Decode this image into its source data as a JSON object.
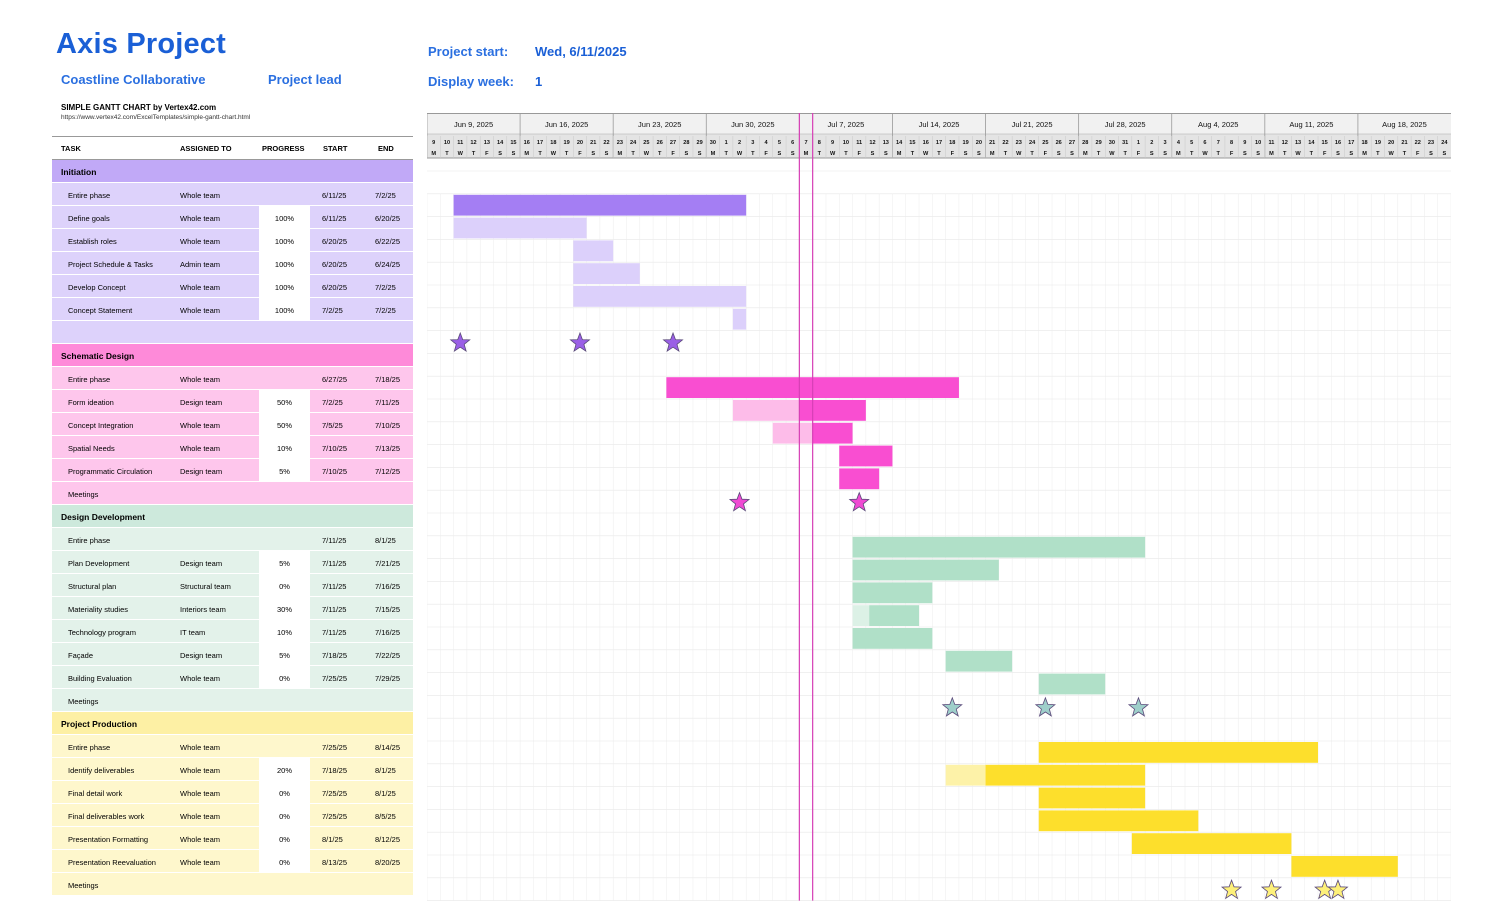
{
  "header": {
    "title": "Axis Project",
    "company": "Coastline Collaborative",
    "lead_label": "Project lead",
    "project_start_label": "Project start:",
    "project_start_value": "Wed, 6/11/2025",
    "display_week_label": "Display week:",
    "display_week_value": "1",
    "credit": "SIMPLE GANTT CHART by Vertex42.com",
    "credit_url": "https://www.vertex42.com/ExcelTemplates/simple-gantt-chart.html"
  },
  "columns": {
    "task": "TASK",
    "assigned": "ASSIGNED TO",
    "progress": "PROGRESS",
    "start": "START",
    "end": "END"
  },
  "colors": {
    "initiation": {
      "header": "#c1a9f7",
      "row": "#ddd2fb",
      "bar_dark": "#a47ef3",
      "bar_light": "#dcd0fb",
      "star": "#9a5fe6"
    },
    "schematic": {
      "header": "#fe8ad9",
      "row": "#fec6ec",
      "bar_dark": "#f94ed1",
      "bar_light": "#fdbce9",
      "star": "#f04ad3"
    },
    "design": {
      "header": "#cde9dc",
      "row": "#e3f2ea",
      "bar_dark": "#b0e0c8",
      "bar_light": "#dcf1e6",
      "star": "#9ecfca"
    },
    "production": {
      "header": "#fdf0a4",
      "row": "#fef7cc",
      "bar_dark": "#fddf2c",
      "bar_light": "#fdf2a8",
      "star": "#fdf07a"
    },
    "today_line": "#d63fb5"
  },
  "timeline": {
    "weeks": [
      "Jun 9, 2025",
      "Jun 16, 2025",
      "Jun 23, 2025",
      "Jun 30, 2025",
      "Jul 7, 2025",
      "Jul 14, 2025",
      "Jul 21, 2025",
      "Jul 28, 2025",
      "Aug 4, 2025",
      "Aug 11, 2025",
      "Aug 18, 2025"
    ],
    "day_numbers": [
      "9",
      "10",
      "11",
      "12",
      "13",
      "14",
      "15",
      "16",
      "17",
      "18",
      "19",
      "20",
      "21",
      "22",
      "23",
      "24",
      "25",
      "26",
      "27",
      "28",
      "29",
      "30",
      "1",
      "2",
      "3",
      "4",
      "5",
      "6",
      "7",
      "8",
      "9",
      "10",
      "11",
      "12",
      "13",
      "14",
      "15",
      "16",
      "17",
      "18",
      "19",
      "20",
      "21",
      "22",
      "23",
      "24",
      "25",
      "26",
      "27",
      "28",
      "29",
      "30",
      "31",
      "1",
      "2",
      "3",
      "4",
      "5",
      "6",
      "7",
      "8",
      "9",
      "10",
      "11",
      "12",
      "13",
      "14",
      "15",
      "16",
      "17",
      "18",
      "19",
      "20",
      "21",
      "22",
      "23",
      "24"
    ],
    "day_letters": [
      "M",
      "T",
      "W",
      "T",
      "F",
      "S",
      "S"
    ],
    "first_day": "2025-06-09",
    "today_markers": [
      "2025-07-07",
      "2025-07-08"
    ]
  },
  "phases": [
    {
      "key": "initiation",
      "name": "Initiation",
      "tasks": [
        {
          "name": "Entire phase",
          "assigned": "Whole team",
          "progress": "",
          "start": "6/11/25",
          "end": "7/2/25",
          "bar": {
            "start": "2025-06-11",
            "end": "2025-07-02",
            "done": 0,
            "dark": true
          }
        },
        {
          "name": "Define goals",
          "assigned": "Whole team",
          "progress": "100%",
          "start": "6/11/25",
          "end": "6/20/25",
          "bar": {
            "start": "2025-06-11",
            "end": "2025-06-20",
            "done": 1
          }
        },
        {
          "name": "Establish roles",
          "assigned": "Whole team",
          "progress": "100%",
          "start": "6/20/25",
          "end": "6/22/25",
          "bar": {
            "start": "2025-06-20",
            "end": "2025-06-22",
            "done": 1
          }
        },
        {
          "name": "Project Schedule & Tasks",
          "assigned": "Admin team",
          "progress": "100%",
          "start": "6/20/25",
          "end": "6/24/25",
          "bar": {
            "start": "2025-06-20",
            "end": "2025-06-24",
            "done": 1
          }
        },
        {
          "name": "Develop Concept",
          "assigned": "Whole team",
          "progress": "100%",
          "start": "6/20/25",
          "end": "7/2/25",
          "bar": {
            "start": "2025-06-20",
            "end": "2025-07-02",
            "done": 1
          }
        },
        {
          "name": "Concept Statement",
          "assigned": "Whole team",
          "progress": "100%",
          "start": "7/2/25",
          "end": "7/2/25",
          "bar": {
            "start": "2025-07-02",
            "end": "2025-07-02",
            "done": 1
          }
        },
        {
          "name": "",
          "assigned": "",
          "progress": "",
          "start": "",
          "end": "",
          "stars": [
            "2025-06-11",
            "2025-06-20",
            "2025-06-27"
          ]
        }
      ]
    },
    {
      "key": "schematic",
      "name": "Schematic Design",
      "tasks": [
        {
          "name": "Entire phase",
          "assigned": "Whole team",
          "progress": "",
          "start": "6/27/25",
          "end": "7/18/25",
          "bar": {
            "start": "2025-06-27",
            "end": "2025-07-18",
            "done": 0,
            "dark": true
          }
        },
        {
          "name": "Form ideation",
          "assigned": "Design team",
          "progress": "50%",
          "start": "7/2/25",
          "end": "7/11/25",
          "bar": {
            "start": "2025-07-02",
            "end": "2025-07-11",
            "done": 0.5
          }
        },
        {
          "name": "Concept Integration",
          "assigned": "Whole team",
          "progress": "50%",
          "start": "7/5/25",
          "end": "7/10/25",
          "bar": {
            "start": "2025-07-05",
            "end": "2025-07-10",
            "done": 0.5
          }
        },
        {
          "name": "Spatial Needs",
          "assigned": "Whole team",
          "progress": "10%",
          "start": "7/10/25",
          "end": "7/13/25",
          "bar": {
            "start": "2025-07-10",
            "end": "2025-07-13",
            "done": 0
          }
        },
        {
          "name": "Programmatic Circulation",
          "assigned": "Design team",
          "progress": "5%",
          "start": "7/10/25",
          "end": "7/12/25",
          "bar": {
            "start": "2025-07-10",
            "end": "2025-07-12",
            "done": 0
          }
        },
        {
          "name": "Meetings",
          "assigned": "",
          "progress": "",
          "start": "",
          "end": "",
          "stars": [
            "2025-07-02",
            "2025-07-11"
          ]
        }
      ]
    },
    {
      "key": "design",
      "name": "Design Development",
      "tasks": [
        {
          "name": "Entire phase",
          "assigned": "",
          "progress": "",
          "start": "7/11/25",
          "end": "8/1/25",
          "bar": {
            "start": "2025-07-11",
            "end": "2025-08-01",
            "done": 0,
            "dark": true
          }
        },
        {
          "name": "Plan Development",
          "assigned": "Design team",
          "progress": "5%",
          "start": "7/11/25",
          "end": "7/21/25",
          "bar": {
            "start": "2025-07-11",
            "end": "2025-07-21",
            "done": 0
          }
        },
        {
          "name": "Structural plan",
          "assigned": "Structural team",
          "progress": "0%",
          "start": "7/11/25",
          "end": "7/16/25",
          "bar": {
            "start": "2025-07-11",
            "end": "2025-07-16",
            "done": 0
          }
        },
        {
          "name": "Materiality studies",
          "assigned": "Interiors team",
          "progress": "30%",
          "start": "7/11/25",
          "end": "7/15/25",
          "bar": {
            "start": "2025-07-11",
            "end": "2025-07-15",
            "done": 0.25
          }
        },
        {
          "name": "Technology program",
          "assigned": "IT team",
          "progress": "10%",
          "start": "7/11/25",
          "end": "7/16/25",
          "bar": {
            "start": "2025-07-11",
            "end": "2025-07-16",
            "done": 0
          }
        },
        {
          "name": "Façade",
          "assigned": "Design team",
          "progress": "5%",
          "start": "7/18/25",
          "end": "7/22/25",
          "bar": {
            "start": "2025-07-18",
            "end": "2025-07-22",
            "done": 0
          }
        },
        {
          "name": "Building Evaluation",
          "assigned": "Whole team",
          "progress": "0%",
          "start": "7/25/25",
          "end": "7/29/25",
          "bar": {
            "start": "2025-07-25",
            "end": "2025-07-29",
            "done": 0
          }
        },
        {
          "name": "Meetings",
          "assigned": "",
          "progress": "",
          "start": "",
          "end": "",
          "stars": [
            "2025-07-18",
            "2025-07-25",
            "2025-08-01"
          ]
        }
      ]
    },
    {
      "key": "production",
      "name": "Project Production",
      "tasks": [
        {
          "name": "Entire phase",
          "assigned": "Whole team",
          "progress": "",
          "start": "7/25/25",
          "end": "8/14/25",
          "bar": {
            "start": "2025-07-25",
            "end": "2025-08-14",
            "done": 0,
            "dark": true
          }
        },
        {
          "name": "Identify deliverables",
          "assigned": "Whole team",
          "progress": "20%",
          "start": "7/18/25",
          "end": "8/1/25",
          "bar": {
            "start": "2025-07-18",
            "end": "2025-08-01",
            "done": 0.2
          }
        },
        {
          "name": "Final detail work",
          "assigned": "Whole team",
          "progress": "0%",
          "start": "7/25/25",
          "end": "8/1/25",
          "bar": {
            "start": "2025-07-25",
            "end": "2025-08-01",
            "done": 0
          }
        },
        {
          "name": "Final deliverables work",
          "assigned": "Whole team",
          "progress": "0%",
          "start": "7/25/25",
          "end": "8/5/25",
          "bar": {
            "start": "2025-07-25",
            "end": "2025-08-05",
            "done": 0
          }
        },
        {
          "name": "Presentation Formatting",
          "assigned": "Whole team",
          "progress": "0%",
          "start": "8/1/25",
          "end": "8/12/25",
          "bar": {
            "start": "2025-08-01",
            "end": "2025-08-12",
            "done": 0
          }
        },
        {
          "name": "Presentation Reevaluation",
          "assigned": "Whole team",
          "progress": "0%",
          "start": "8/13/25",
          "end": "8/20/25",
          "bar": {
            "start": "2025-08-13",
            "end": "2025-08-20",
            "done": 0
          }
        },
        {
          "name": "Meetings",
          "assigned": "",
          "progress": "",
          "start": "",
          "end": "",
          "stars": [
            "2025-08-08",
            "2025-08-11",
            "2025-08-15",
            "2025-08-16"
          ]
        }
      ]
    }
  ]
}
